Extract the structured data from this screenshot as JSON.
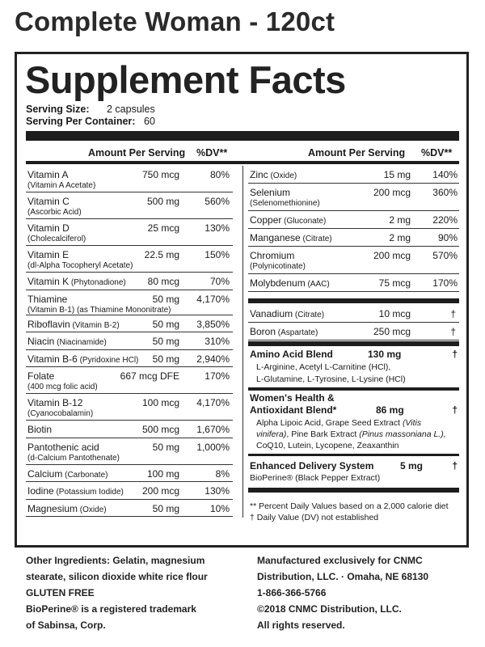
{
  "product_title": "Complete Woman - 120ct",
  "panel_title": "Supplement Facts",
  "serving_size_label": "Serving Size:",
  "serving_size_value": "2 capsules",
  "servings_label": "Serving Per Container:",
  "servings_value": "60",
  "header": {
    "amount": "Amount Per Serving",
    "dv": "%DV**"
  },
  "left_rows": [
    {
      "name": "Vitamin A",
      "sub": "(Vitamin A Acetate)",
      "amount": "750 mcg",
      "dv": "80%"
    },
    {
      "name": "Vitamin C",
      "sub": "(Ascorbic Acid)",
      "amount": "500 mg",
      "dv": "560%"
    },
    {
      "name": "Vitamin D",
      "sub": "(Cholecalciferol)",
      "amount": "25 mcg",
      "dv": "130%"
    },
    {
      "name": "Vitamin E",
      "sub": "(dl-Alpha Tocopheryl Acetate)",
      "amount": "22.5 mg",
      "dv": "150%"
    },
    {
      "name": "Vitamin K",
      "inline": "(Phytonadione)",
      "amount": "80 mcg",
      "dv": "70%"
    },
    {
      "name": "Thiamine",
      "sub": "(Vitamin B-1) (as Thiamine Mononitrate)",
      "amount": "50 mg",
      "dv": "4,170%"
    },
    {
      "name": "Riboflavin",
      "inline": "(Vitamin B-2)",
      "amount": "50 mg",
      "dv": "3,850%"
    },
    {
      "name": "Niacin",
      "inline": "(Niacinamide)",
      "amount": "50 mg",
      "dv": "310%"
    },
    {
      "name": "Vitamin B-6",
      "inline": "(Pyridoxine HCl)",
      "amount": "50 mg",
      "dv": "2,940%"
    },
    {
      "name": "Folate",
      "sub": "(400 mcg folic acid)",
      "amount": "667 mcg DFE",
      "dv": "170%"
    },
    {
      "name": "Vitamin B-12",
      "sub": "(Cyanocobalamin)",
      "amount": "100 mcg",
      "dv": "4,170%"
    },
    {
      "name": "Biotin",
      "amount": "500 mcg",
      "dv": "1,670%"
    },
    {
      "name": "Pantothenic acid",
      "sub": "(d-Calcium Pantothenate)",
      "amount": "50 mg",
      "dv": "1,000%"
    },
    {
      "name": "Calcium",
      "inline": "(Carbonate)",
      "amount": "100 mg",
      "dv": "8%"
    },
    {
      "name": "Iodine",
      "inline": "(Potassium Iodide)",
      "amount": "200 mcg",
      "dv": "130%"
    },
    {
      "name": "Magnesium",
      "inline": "(Oxide)",
      "amount": "50 mg",
      "dv": "10%"
    }
  ],
  "right_rows": [
    {
      "name": "Zinc",
      "inline": "(Oxide)",
      "amount": "15 mg",
      "dv": "140%"
    },
    {
      "name": "Selenium",
      "sub": "(Selenomethionine)",
      "amount": "200 mcg",
      "dv": "360%"
    },
    {
      "name": "Copper",
      "inline": "(Gluconate)",
      "amount": "2 mg",
      "dv": "220%"
    },
    {
      "name": "Manganese",
      "inline": "(Citrate)",
      "amount": "2 mg",
      "dv": "90%"
    },
    {
      "name": "Chromium",
      "sub": "(Polynicotinate)",
      "amount": "200 mcg",
      "dv": "570%"
    },
    {
      "name": "Molybdenum",
      "inline": "(AAC)",
      "amount": "75 mcg",
      "dv": "170%"
    }
  ],
  "right_rows2": [
    {
      "name": "Vanadium",
      "inline": "(Citrate)",
      "amount": "10 mcg",
      "dv": "†"
    },
    {
      "name": "Boron",
      "inline": "(Aspartate)",
      "amount": "250 mcg",
      "dv": "†"
    }
  ],
  "amino_blend": {
    "name": "Amino Acid Blend",
    "amount": "130 mg",
    "dv": "†",
    "line1": "L-Arginine, Acetyl L-Carnitine (HCl),",
    "line2": "L-Glutamine, L-Tyrosine, L-Lysine (HCl)"
  },
  "womens_blend": {
    "name1": "Women's Health &",
    "name2": "Antioxidant Blend*",
    "amount": "86 mg",
    "dv": "†",
    "line1a": "Alpha Lipoic Acid, Grape Seed Extract ",
    "line1b": "(Vitis",
    "line2a": "vinifera)",
    "line2b": ", Pine Bark Extract ",
    "line2c": "(Pinus massoniana L.),",
    "line3": "CoQ10, Lutein, Lycopene, Zeaxanthin"
  },
  "delivery": {
    "name": "Enhanced Delivery System",
    "amount": "5 mg",
    "dv": "†",
    "line1": "BioPerine® (Black Pepper Extract)"
  },
  "footnote1": "** Percent Daily Values based on a 2,000 calorie diet",
  "footnote2": "† Daily Value (DV) not established",
  "other_ingredients_1": "Other Ingredients: Gelatin, magnesium",
  "other_ingredients_2": "stearate, silicon dioxide white rice flour",
  "gluten_free": "GLUTEN FREE",
  "trademark_1": "BioPerine® is a registered trademark",
  "trademark_2": "of Sabinsa, Corp.",
  "manufacturer_1": "Manufactured exclusively for CNMC",
  "manufacturer_2": "Distribution, LLC. · Omaha, NE 68130",
  "phone": "1-866-366-5766",
  "copyright": "©2018 CNMC Distribution, LLC.",
  "rights": "All rights reserved."
}
